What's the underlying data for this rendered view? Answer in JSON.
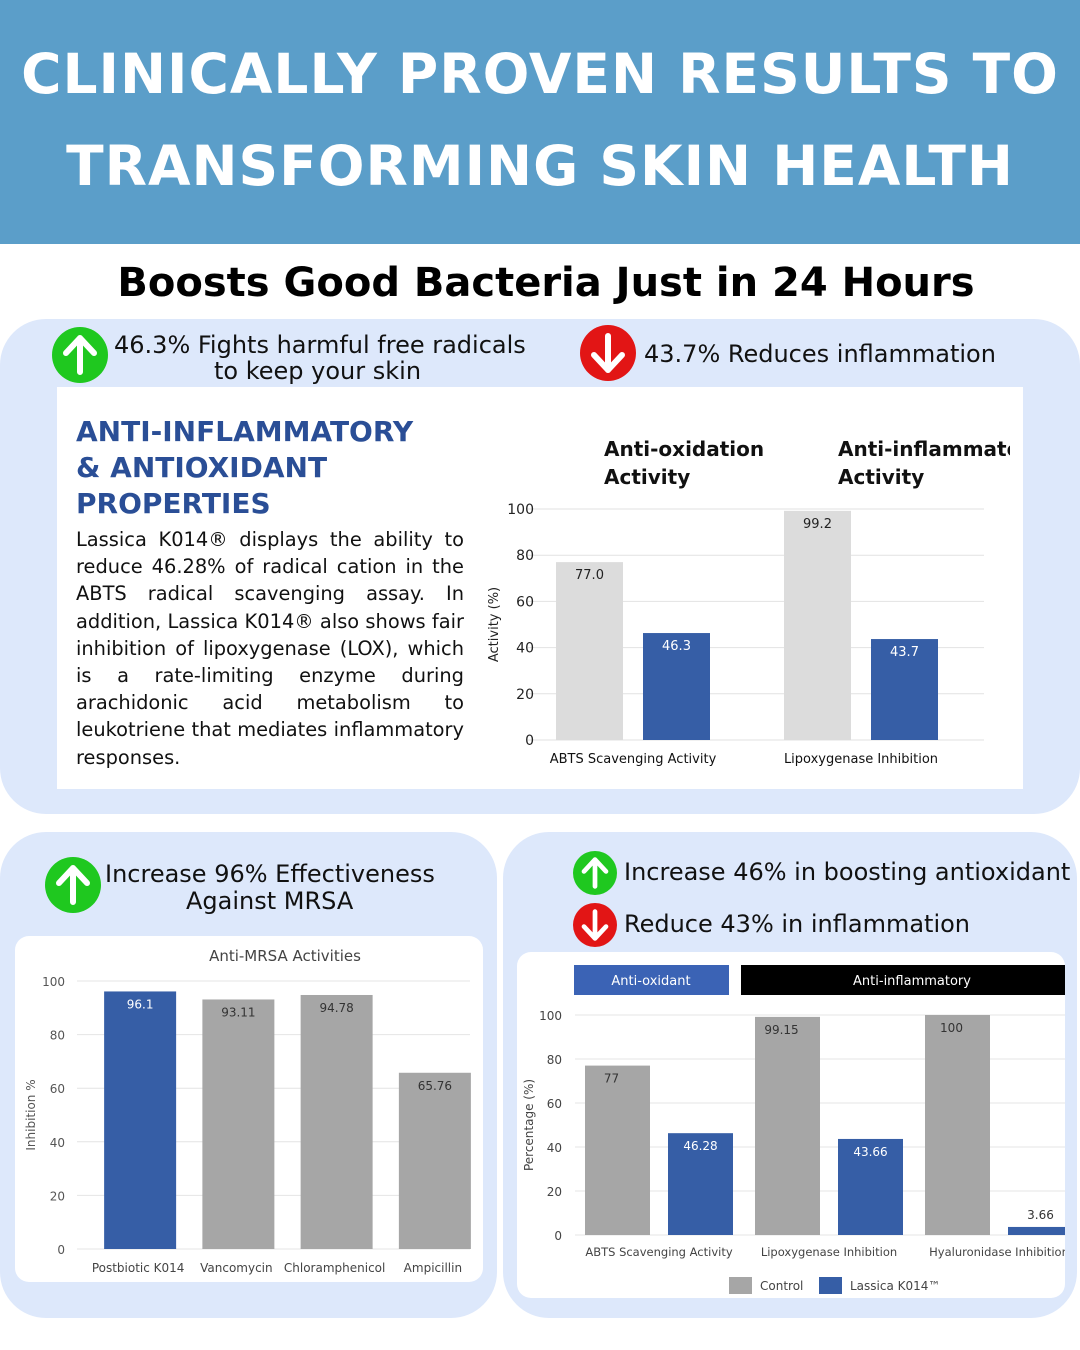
{
  "header": {
    "line1": "CLINICALLY PROVEN RESULTS TO",
    "line2": "TRANSFORMING SKIN HEALTH"
  },
  "subtitle": "Boosts Good Bacteria Just in 24 Hours",
  "colors": {
    "header_bg": "#5b9ec9",
    "panel_bg": "#dde8fb",
    "up_badge": "#1fc81f",
    "down_badge": "#e21515",
    "series_blue": "#365ea6",
    "control_grey": "#a6a6a6",
    "title_blue": "#2a4e96"
  },
  "top_panel": {
    "claim_up_icon": "arrow-up-icon",
    "claim_up_line1": "46.3% Fights harmful free radicals",
    "claim_up_line2": "to keep your skin",
    "claim_down_icon": "arrow-down-icon",
    "claim_down": "43.7% Reduces inflammation",
    "properties_title_lines": [
      "ANTI-INFLAMMATORY",
      "& ANTIOXIDANT",
      "PROPERTIES"
    ],
    "properties_body": "Lassica K014® displays the ability to reduce 46.28% of radical cation in the ABTS radical scavenging assay. In addition, Lassica K014® also shows fair inhibition of lipoxygenase (LOX), which is a rate-limiting enzyme during arachidonic acid metabolism to leukotriene that mediates inflammatory responses."
  },
  "bottom_left": {
    "claim_icon": "arrow-up-icon",
    "claim_line1": "Increase 96% Effectiveness",
    "claim_line2": "Against MRSA"
  },
  "bottom_right": {
    "claim_up_icon": "arrow-up-icon",
    "claim_up": "Increase 46% in boosting antioxidant",
    "claim_down_icon": "arrow-down-icon",
    "claim_down": "Reduce 43% in inflammation"
  },
  "chart_data": [
    {
      "type": "bar",
      "group_titles": [
        "Anti-oxidation\nActivity",
        "Anti-inflammatory\nActivity"
      ],
      "categories": [
        "ABTS Scavenging Activity",
        "Lipoxygenase Inhibition"
      ],
      "series": [
        {
          "values": [
            77.0,
            99.2
          ],
          "color": "#dcdcdc"
        },
        {
          "values": [
            46.3,
            43.7
          ],
          "color": "#365ea6"
        }
      ],
      "value_labels": [
        [
          "77.0",
          "99.2"
        ],
        [
          "46.3",
          "43.7"
        ]
      ],
      "ylabel": "Activity (%)",
      "yticks": [
        "0",
        "20",
        "40",
        "60",
        "80",
        "100"
      ],
      "ylim": [
        0,
        100
      ],
      "grid": true
    },
    {
      "type": "bar",
      "title": "Anti-MRSA Activities",
      "categories": [
        "Postbiotic K014",
        "Vancomycin",
        "Chloramphenicol",
        "Ampicillin"
      ],
      "values": [
        96.1,
        93.11,
        94.78,
        65.76
      ],
      "value_labels": [
        "96.1",
        "93.11",
        "94.78",
        "65.76"
      ],
      "colors": [
        "#365ea6",
        "#a6a6a6",
        "#a6a6a6",
        "#a6a6a6"
      ],
      "ylabel": "Inhibition %",
      "yticks": [
        "0",
        "20",
        "40",
        "60",
        "80",
        "100"
      ],
      "ylim": [
        0,
        100
      ],
      "grid": true
    },
    {
      "type": "bar",
      "group_headers": [
        "Anti-oxidant",
        "Anti-inflammatory"
      ],
      "categories": [
        "ABTS Scavenging Activity",
        "Lipoxygenase Inhibition",
        "Hyaluronidase Inhibition"
      ],
      "series": [
        {
          "name": "Control",
          "values": [
            77,
            99.15,
            100
          ],
          "color": "#a6a6a6"
        },
        {
          "name": "Lassica K014™",
          "values": [
            46.28,
            43.66,
            3.66
          ],
          "color": "#365ea6"
        }
      ],
      "value_labels": [
        [
          "77",
          "99.15",
          "100"
        ],
        [
          "46.28",
          "43.66",
          "3.66"
        ]
      ],
      "ylabel": "Percentage (%)",
      "yticks": [
        "0",
        "20",
        "40",
        "60",
        "80",
        "100"
      ],
      "ylim": [
        0,
        100
      ],
      "legend": "bottom",
      "grid": true
    }
  ]
}
